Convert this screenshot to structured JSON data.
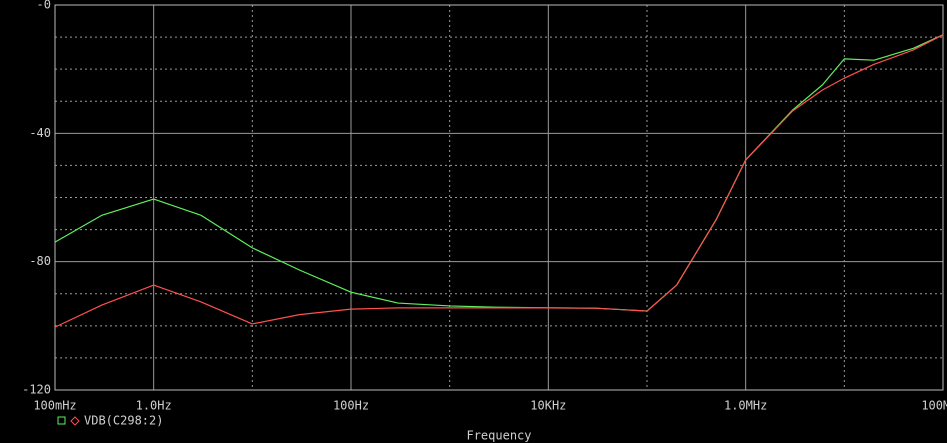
{
  "chart_data": {
    "type": "line",
    "x_label": "Frequency",
    "xscale": "log",
    "xlim": [
      0.1,
      100000000
    ],
    "xticks": [
      {
        "value": 0.1,
        "label": "100mHz"
      },
      {
        "value": 1,
        "label": "1.0Hz"
      },
      {
        "value": 100,
        "label": "100Hz"
      },
      {
        "value": 10000,
        "label": "10KHz"
      },
      {
        "value": 1000000,
        "label": "1.0MHz"
      },
      {
        "value": 100000000,
        "label": "100MHz"
      }
    ],
    "ylim": [
      -120,
      0
    ],
    "yticks": [
      {
        "value": 0,
        "label": "-0"
      },
      -40,
      -80,
      -120
    ],
    "grid": true,
    "x": [
      0.1,
      0.3,
      1,
      3,
      10,
      30,
      100,
      300,
      1000,
      3000,
      10000,
      30000,
      60000,
      100000,
      200000,
      500000,
      1000000,
      3000000,
      6000000,
      10000000,
      20000000,
      50000000,
      100000000
    ],
    "series": [
      {
        "color": "#5ef05e",
        "marker": "square",
        "values": [
          -73.9,
          -65.5,
          -60.5,
          -65.5,
          -75.7,
          -82.6,
          -89.5,
          -92.9,
          -93.8,
          -94.2,
          -94.4,
          -94.5,
          -95,
          -95.4,
          -87.3,
          -67,
          -48.3,
          -32.7,
          -24.9,
          -16.8,
          -17.2,
          -13.5,
          -9.3
        ]
      },
      {
        "name": "VDB(C298:2)",
        "color": "#ff5050",
        "marker": "diamond",
        "values": [
          -100.4,
          -93.5,
          -87.3,
          -92.5,
          -99.4,
          -96.5,
          -94.8,
          -94.4,
          -94.4,
          -94.4,
          -94.4,
          -94.5,
          -95,
          -95.4,
          -87.3,
          -67,
          -48.3,
          -33,
          -26.5,
          -22.8,
          -18.5,
          -14,
          -9.3
        ]
      }
    ]
  }
}
